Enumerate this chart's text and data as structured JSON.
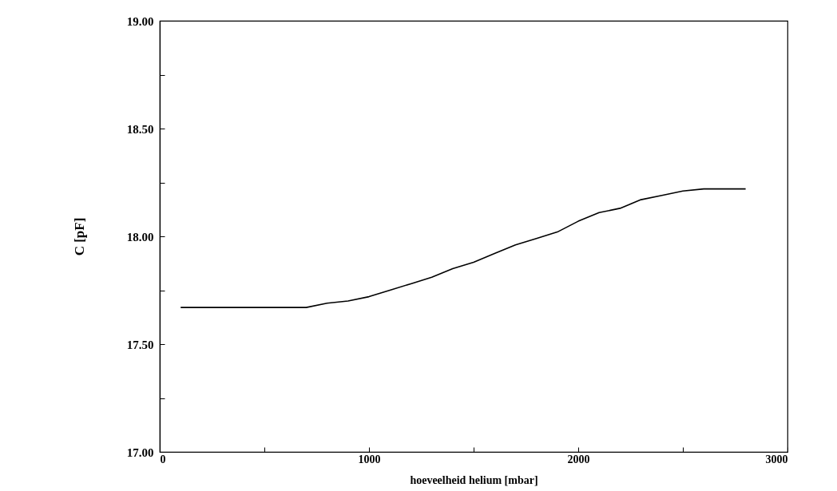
{
  "chart_data": {
    "type": "line",
    "xlabel": "hoeveelheid helium [mbar]",
    "ylabel": "C [pF]",
    "x": [
      100,
      700,
      800,
      900,
      1000,
      1100,
      1200,
      1300,
      1400,
      1500,
      1600,
      1700,
      1800,
      1900,
      2000,
      2100,
      2200,
      2300,
      2400,
      2500,
      2600,
      2800
    ],
    "series": [
      {
        "color": "#000000",
        "values": [
          17.67,
          17.67,
          17.69,
          17.7,
          17.72,
          17.75,
          17.78,
          17.81,
          17.85,
          17.88,
          17.92,
          17.96,
          17.99,
          18.02,
          18.07,
          18.11,
          18.13,
          18.17,
          18.19,
          18.21,
          18.22,
          18.22
        ]
      }
    ],
    "xlim": [
      0,
      3000
    ],
    "xticks": [
      0,
      {
        "value": 500,
        "label": null
      },
      1000,
      {
        "value": 1500,
        "label": null
      },
      2000,
      {
        "value": 2500,
        "label": null
      },
      3000
    ],
    "ylim": [
      17,
      19
    ],
    "yticks": [
      {
        "value": 17,
        "label": "17.00"
      },
      {
        "value": 17.25,
        "label": null
      },
      {
        "value": 17.5,
        "label": "17.50"
      },
      {
        "value": 17.75,
        "label": null
      },
      {
        "value": 18,
        "label": "18.00"
      },
      {
        "value": 18.25,
        "label": null
      },
      {
        "value": 18.5,
        "label": "18.50"
      },
      {
        "value": 18.75,
        "label": null
      },
      {
        "value": 19,
        "label": "19.00"
      }
    ],
    "grid": false,
    "marker": "none",
    "line_style": "solid"
  }
}
